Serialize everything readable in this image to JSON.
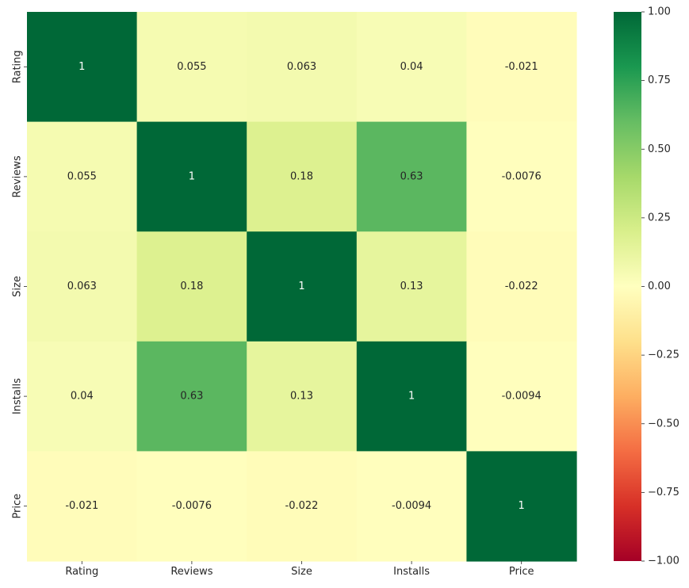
{
  "chart_data": {
    "type": "heatmap",
    "title": "",
    "xlabel": "",
    "ylabel": "",
    "x_categories": [
      "Rating",
      "Reviews",
      "Size",
      "Installs",
      "Price"
    ],
    "y_categories": [
      "Rating",
      "Reviews",
      "Size",
      "Installs",
      "Price"
    ],
    "values": [
      [
        1,
        0.055,
        0.063,
        0.04,
        -0.021
      ],
      [
        0.055,
        1,
        0.18,
        0.63,
        -0.0076
      ],
      [
        0.063,
        0.18,
        1,
        0.13,
        -0.022
      ],
      [
        0.04,
        0.63,
        0.13,
        1,
        -0.0094
      ],
      [
        -0.021,
        -0.0076,
        -0.022,
        -0.0094,
        1
      ]
    ],
    "annotations": [
      [
        "1",
        "0.055",
        "0.063",
        "0.04",
        "-0.021"
      ],
      [
        "0.055",
        "1",
        "0.18",
        "0.63",
        "-0.0076"
      ],
      [
        "0.063",
        "0.18",
        "1",
        "0.13",
        "-0.022"
      ],
      [
        "0.04",
        "0.63",
        "0.13",
        "1",
        "-0.0094"
      ],
      [
        "-0.021",
        "-0.0076",
        "-0.022",
        "-0.0094",
        "1"
      ]
    ],
    "colormap": "RdYlGn",
    "vmin": -1,
    "vmax": 1,
    "colorbar": {
      "ticks": [
        1.0,
        0.75,
        0.5,
        0.25,
        0.0,
        -0.25,
        -0.5,
        -0.75,
        -1.0
      ],
      "tick_labels": [
        "1.00",
        "0.75",
        "0.50",
        "0.25",
        "0.00",
        "−0.25",
        "−0.50",
        "−0.75",
        "−1.00"
      ]
    },
    "grid": false,
    "legend": "colorbar-right"
  }
}
